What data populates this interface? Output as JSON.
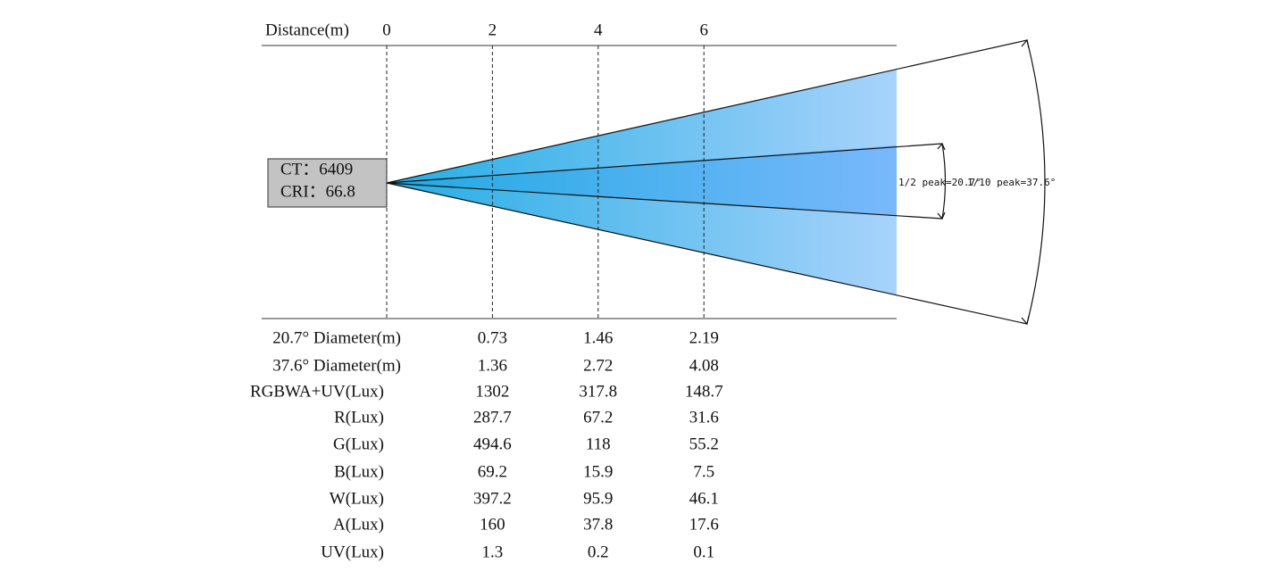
{
  "header": {
    "distance_label": "Distance(m)",
    "distances": [
      0,
      2,
      4,
      6
    ]
  },
  "source_box": {
    "ct": "CT：6409",
    "cri": "CRI：66.8"
  },
  "beam_labels": {
    "half_peak": "1/2 peak=20.7°",
    "tenth_peak": "1/10 peak=37.6°"
  },
  "table": {
    "rows": [
      {
        "label": "20.7° Diameter(m)",
        "values": [
          0.73,
          1.46,
          2.19
        ]
      },
      {
        "label": "37.6° Diameter(m)",
        "values": [
          1.36,
          2.72,
          4.08
        ]
      },
      {
        "label": "RGBWA+UV(Lux)",
        "values": [
          1302,
          317.8,
          148.7
        ]
      },
      {
        "label": "R(Lux)",
        "values": [
          287.7,
          67.2,
          31.6
        ]
      },
      {
        "label": "G(Lux)",
        "values": [
          494.6,
          118,
          55.2
        ]
      },
      {
        "label": "B(Lux)",
        "values": [
          69.2,
          15.9,
          7.5
        ]
      },
      {
        "label": "W(Lux)",
        "values": [
          397.2,
          95.9,
          46.1
        ]
      },
      {
        "label": "A(Lux)",
        "values": [
          160,
          37.8,
          17.6
        ]
      },
      {
        "label": "UV(Lux)",
        "values": [
          1.3,
          0.2,
          0.1
        ]
      }
    ]
  }
}
